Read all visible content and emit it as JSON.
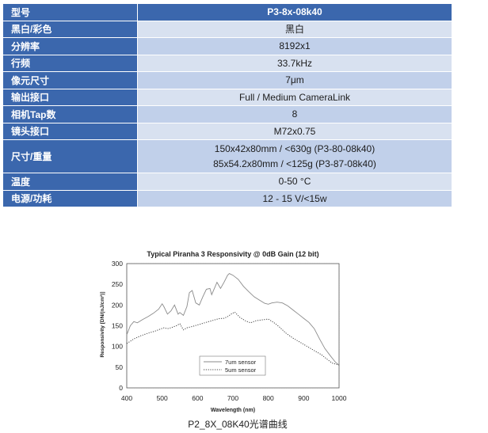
{
  "spec_table": {
    "rows": [
      {
        "label": "型号",
        "values": [
          "P3-8x-08k40"
        ]
      },
      {
        "label": "黑白/彩色",
        "values": [
          "黑白"
        ]
      },
      {
        "label": "分辨率",
        "values": [
          "8192x1"
        ]
      },
      {
        "label": "行频",
        "values": [
          "33.7kHz"
        ]
      },
      {
        "label": "像元尺寸",
        "values": [
          "7μm"
        ]
      },
      {
        "label": "输出接口",
        "values": [
          "Full / Medium CameraLink"
        ]
      },
      {
        "label": "相机Tap数",
        "values": [
          "8"
        ]
      },
      {
        "label": "镜头接口",
        "values": [
          "M72x0.75"
        ]
      },
      {
        "label": "尺寸/重量",
        "values": [
          "150x42x80mm / <630g (P3-80-08k40)",
          "85x54.2x80mm / <125g (P3-87-08k40)"
        ]
      },
      {
        "label": "温度",
        "values": [
          "0-50 °C"
        ]
      },
      {
        "label": "电源/功耗",
        "values": [
          "12 - 15 V/<15w"
        ]
      }
    ],
    "colors": {
      "header": "#3b67ad",
      "label": "#3b67ad",
      "cell_light": "#d8e1f0",
      "cell_mid": "#c1d0ea"
    }
  },
  "chart_data": {
    "type": "line",
    "title": "Typical Piranha 3 Responsivity @ 0dB Gain (12 bit)",
    "xlabel": "Wavelength (nm)",
    "ylabel": "Responsivity [DN/(nJ/cm²)]",
    "xlim": [
      400,
      1000
    ],
    "ylim": [
      0,
      300
    ],
    "xticks": [
      400,
      500,
      600,
      700,
      800,
      900,
      1000
    ],
    "yticks": [
      0,
      50,
      100,
      150,
      200,
      250,
      300
    ],
    "grid": true,
    "legend_position": "lower-center",
    "series": [
      {
        "name": "7um sensor",
        "style": "solid",
        "color": "#8a8a8a",
        "x": [
          400,
          410,
          420,
          430,
          445,
          460,
          475,
          490,
          500,
          505,
          515,
          525,
          535,
          545,
          550,
          560,
          570,
          577,
          585,
          595,
          605,
          615,
          625,
          635,
          640,
          650,
          655,
          665,
          675,
          685,
          690,
          700,
          715,
          730,
          745,
          760,
          775,
          790,
          800,
          810,
          825,
          840,
          855,
          870,
          885,
          900,
          915,
          930,
          945,
          960,
          975,
          990,
          1000
        ],
        "y": [
          128,
          150,
          160,
          157,
          165,
          172,
          180,
          190,
          203,
          196,
          178,
          186,
          200,
          178,
          182,
          175,
          196,
          230,
          235,
          205,
          200,
          220,
          238,
          240,
          225,
          245,
          255,
          240,
          255,
          272,
          276,
          272,
          262,
          245,
          232,
          220,
          212,
          204,
          202,
          205,
          207,
          205,
          198,
          188,
          178,
          168,
          158,
          143,
          118,
          95,
          78,
          62,
          55
        ]
      },
      {
        "name": "5um sensor",
        "style": "dotted",
        "color": "#444444",
        "x": [
          400,
          420,
          440,
          460,
          480,
          495,
          505,
          515,
          525,
          540,
          550,
          560,
          570,
          585,
          600,
          620,
          640,
          660,
          675,
          685,
          695,
          705,
          720,
          735,
          750,
          765,
          780,
          800,
          815,
          830,
          850,
          870,
          890,
          910,
          930,
          950,
          965,
          980,
          1000
        ],
        "y": [
          107,
          118,
          126,
          132,
          137,
          142,
          145,
          143,
          145,
          150,
          155,
          140,
          145,
          148,
          152,
          157,
          162,
          167,
          168,
          172,
          178,
          183,
          170,
          162,
          157,
          162,
          164,
          166,
          158,
          148,
          132,
          120,
          110,
          100,
          90,
          80,
          70,
          60,
          55
        ]
      }
    ]
  },
  "caption": "P2_8X_08K40光谱曲线"
}
